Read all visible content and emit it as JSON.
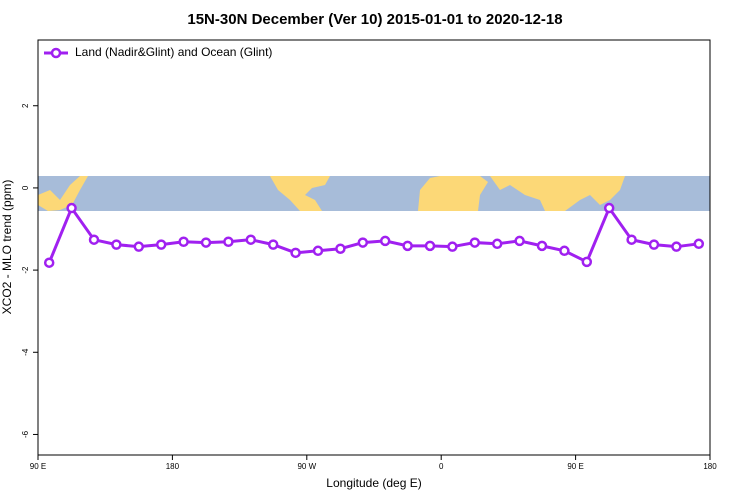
{
  "chart_data": {
    "type": "line",
    "title": "15N-30N December (Ver 10)   2015-01-01 to 2020-12-18",
    "xlabel": "Longitude (deg E)",
    "ylabel": "XCO2 - MLO trend (ppm)",
    "x": [
      97.5,
      112.5,
      127.5,
      142.5,
      157.5,
      172.5,
      187.5,
      202.5,
      217.5,
      232.5,
      247.5,
      262.5,
      277.5,
      292.5,
      307.5,
      322.5,
      337.5,
      352.5,
      367.5,
      382.5,
      397.5,
      412.5,
      427.5,
      442.5,
      457.5,
      472.5,
      487.5,
      502.5,
      517.5,
      532.5
    ],
    "series": [
      {
        "name": "Land (Nadir&Glint) and Ocean (Glint)",
        "color": "#a020f0",
        "values": [
          -1.82,
          -0.49,
          -1.26,
          -1.38,
          -1.43,
          -1.38,
          -1.31,
          -1.33,
          -1.31,
          -1.26,
          -1.38,
          -1.58,
          -1.53,
          -1.48,
          -1.33,
          -1.29,
          -1.41,
          -1.41,
          -1.43,
          -1.33,
          -1.36,
          -1.29,
          -1.41,
          -1.53,
          -1.8,
          -0.49,
          -1.26,
          -1.38,
          -1.43,
          -1.36
        ]
      }
    ],
    "xlim": [
      90,
      540
    ],
    "xticks": [
      {
        "value": 90,
        "label": "90 E"
      },
      180,
      {
        "value": 270,
        "label": "90 W"
      },
      {
        "value": 360,
        "label": "0"
      },
      {
        "value": 450,
        "label": "90 E"
      },
      {
        "value": 540,
        "label": "180"
      }
    ],
    "ylim": [
      -6.5,
      3.6
    ],
    "yticks": [
      -6,
      -4,
      -2,
      0,
      2
    ],
    "legend": "top-left"
  }
}
